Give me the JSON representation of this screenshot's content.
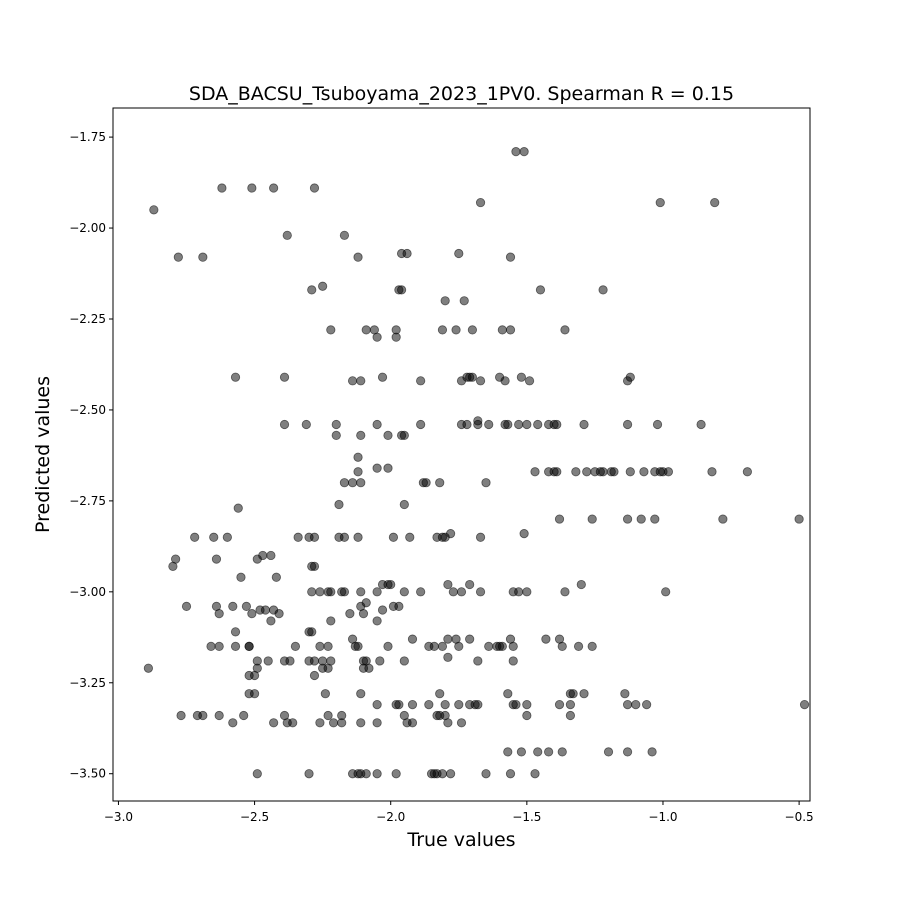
{
  "chart_data": {
    "type": "scatter",
    "title": "SDA_BACSU_Tsuboyama_2023_1PV0. Spearman R = 0.15",
    "xlabel": "True values",
    "ylabel": "Predicted values",
    "xlim": [
      -3.02,
      -0.46
    ],
    "ylim": [
      -3.575,
      -1.67
    ],
    "xticks": [
      -3.0,
      -2.5,
      -2.0,
      -1.5,
      -1.0,
      -0.5
    ],
    "xtick_labels": [
      "−3.0",
      "−2.5",
      "−2.0",
      "−1.5",
      "−1.0",
      "−0.5"
    ],
    "yticks": [
      -3.5,
      -3.25,
      -3.0,
      -2.75,
      -2.5,
      -2.25,
      -2.0,
      -1.75
    ],
    "ytick_labels": [
      "−3.50",
      "−3.25",
      "−3.00",
      "−2.75",
      "−2.50",
      "−2.25",
      "−2.00",
      "−1.75"
    ],
    "grid": false,
    "marker_color": "#000000",
    "marker_opacity": 0.5,
    "points": [
      [
        -1.54,
        -1.79
      ],
      [
        -1.51,
        -1.79
      ],
      [
        -2.87,
        -1.95
      ],
      [
        -2.62,
        -1.89
      ],
      [
        -2.51,
        -1.89
      ],
      [
        -2.43,
        -1.89
      ],
      [
        -2.28,
        -1.89
      ],
      [
        -1.67,
        -1.93
      ],
      [
        -1.01,
        -1.93
      ],
      [
        -0.81,
        -1.93
      ],
      [
        -2.78,
        -2.08
      ],
      [
        -2.69,
        -2.08
      ],
      [
        -2.38,
        -2.02
      ],
      [
        -2.17,
        -2.02
      ],
      [
        -2.12,
        -2.08
      ],
      [
        -1.96,
        -2.07
      ],
      [
        -1.94,
        -2.07
      ],
      [
        -1.75,
        -2.07
      ],
      [
        -1.56,
        -2.08
      ],
      [
        -2.29,
        -2.17
      ],
      [
        -2.25,
        -2.16
      ],
      [
        -1.97,
        -2.17
      ],
      [
        -1.96,
        -2.17
      ],
      [
        -1.8,
        -2.2
      ],
      [
        -1.73,
        -2.2
      ],
      [
        -1.45,
        -2.17
      ],
      [
        -1.22,
        -2.17
      ],
      [
        -2.22,
        -2.28
      ],
      [
        -2.09,
        -2.28
      ],
      [
        -2.06,
        -2.28
      ],
      [
        -2.05,
        -2.3
      ],
      [
        -1.98,
        -2.28
      ],
      [
        -1.98,
        -2.3
      ],
      [
        -1.81,
        -2.28
      ],
      [
        -1.76,
        -2.28
      ],
      [
        -1.7,
        -2.28
      ],
      [
        -1.59,
        -2.28
      ],
      [
        -1.56,
        -2.28
      ],
      [
        -1.36,
        -2.28
      ],
      [
        -2.57,
        -2.41
      ],
      [
        -2.39,
        -2.41
      ],
      [
        -2.14,
        -2.42
      ],
      [
        -2.11,
        -2.42
      ],
      [
        -2.03,
        -2.41
      ],
      [
        -1.89,
        -2.42
      ],
      [
        -1.74,
        -2.42
      ],
      [
        -1.72,
        -2.41
      ],
      [
        -1.71,
        -2.41
      ],
      [
        -1.7,
        -2.41
      ],
      [
        -1.67,
        -2.42
      ],
      [
        -1.6,
        -2.41
      ],
      [
        -1.58,
        -2.42
      ],
      [
        -1.52,
        -2.41
      ],
      [
        -1.49,
        -2.42
      ],
      [
        -1.13,
        -2.42
      ],
      [
        -1.12,
        -2.41
      ],
      [
        -2.39,
        -2.54
      ],
      [
        -2.31,
        -2.54
      ],
      [
        -2.2,
        -2.54
      ],
      [
        -2.2,
        -2.57
      ],
      [
        -2.11,
        -2.57
      ],
      [
        -2.05,
        -2.54
      ],
      [
        -2.01,
        -2.57
      ],
      [
        -1.96,
        -2.57
      ],
      [
        -1.95,
        -2.57
      ],
      [
        -1.89,
        -2.54
      ],
      [
        -1.74,
        -2.54
      ],
      [
        -1.72,
        -2.54
      ],
      [
        -1.68,
        -2.54
      ],
      [
        -1.68,
        -2.53
      ],
      [
        -1.64,
        -2.54
      ],
      [
        -1.58,
        -2.54
      ],
      [
        -1.57,
        -2.54
      ],
      [
        -1.53,
        -2.54
      ],
      [
        -1.5,
        -2.54
      ],
      [
        -1.46,
        -2.54
      ],
      [
        -1.42,
        -2.54
      ],
      [
        -1.4,
        -2.54
      ],
      [
        -1.39,
        -2.54
      ],
      [
        -1.29,
        -2.54
      ],
      [
        -1.13,
        -2.54
      ],
      [
        -1.02,
        -2.54
      ],
      [
        -0.86,
        -2.54
      ],
      [
        -2.12,
        -2.63
      ],
      [
        -2.12,
        -2.67
      ],
      [
        -2.05,
        -2.66
      ],
      [
        -2.01,
        -2.66
      ],
      [
        -1.65,
        -2.7
      ],
      [
        -1.47,
        -2.67
      ],
      [
        -1.42,
        -2.67
      ],
      [
        -1.4,
        -2.67
      ],
      [
        -1.39,
        -2.67
      ],
      [
        -1.32,
        -2.67
      ],
      [
        -1.28,
        -2.67
      ],
      [
        -1.25,
        -2.67
      ],
      [
        -1.23,
        -2.67
      ],
      [
        -1.22,
        -2.67
      ],
      [
        -1.19,
        -2.67
      ],
      [
        -1.18,
        -2.67
      ],
      [
        -1.12,
        -2.67
      ],
      [
        -1.07,
        -2.67
      ],
      [
        -1.03,
        -2.67
      ],
      [
        -1.01,
        -2.67
      ],
      [
        -1.0,
        -2.67
      ],
      [
        -0.98,
        -2.67
      ],
      [
        -0.82,
        -2.67
      ],
      [
        -0.69,
        -2.67
      ],
      [
        -2.56,
        -2.77
      ],
      [
        -2.17,
        -2.7
      ],
      [
        -2.14,
        -2.7
      ],
      [
        -2.11,
        -2.7
      ],
      [
        -2.19,
        -2.76
      ],
      [
        -1.95,
        -2.76
      ],
      [
        -1.88,
        -2.7
      ],
      [
        -1.87,
        -2.7
      ],
      [
        -1.82,
        -2.7
      ],
      [
        -1.38,
        -2.8
      ],
      [
        -1.26,
        -2.8
      ],
      [
        -1.13,
        -2.8
      ],
      [
        -1.08,
        -2.8
      ],
      [
        -1.03,
        -2.8
      ],
      [
        -0.78,
        -2.8
      ],
      [
        -0.5,
        -2.8
      ],
      [
        -2.72,
        -2.85
      ],
      [
        -2.65,
        -2.85
      ],
      [
        -2.6,
        -2.85
      ],
      [
        -2.34,
        -2.85
      ],
      [
        -2.3,
        -2.85
      ],
      [
        -2.28,
        -2.85
      ],
      [
        -2.19,
        -2.85
      ],
      [
        -2.17,
        -2.85
      ],
      [
        -2.12,
        -2.85
      ],
      [
        -1.99,
        -2.85
      ],
      [
        -1.93,
        -2.85
      ],
      [
        -1.83,
        -2.85
      ],
      [
        -1.81,
        -2.85
      ],
      [
        -1.8,
        -2.85
      ],
      [
        -1.78,
        -2.84
      ],
      [
        -1.67,
        -2.85
      ],
      [
        -1.51,
        -2.84
      ],
      [
        -2.8,
        -2.93
      ],
      [
        -2.79,
        -2.91
      ],
      [
        -2.64,
        -2.91
      ],
      [
        -2.49,
        -2.91
      ],
      [
        -2.47,
        -2.9
      ],
      [
        -2.44,
        -2.9
      ],
      [
        -2.29,
        -2.93
      ],
      [
        -2.28,
        -2.93
      ],
      [
        -2.55,
        -2.96
      ],
      [
        -2.42,
        -2.96
      ],
      [
        -2.29,
        -3.0
      ],
      [
        -2.26,
        -3.0
      ],
      [
        -2.23,
        -3.0
      ],
      [
        -2.22,
        -3.0
      ],
      [
        -2.18,
        -3.0
      ],
      [
        -2.17,
        -3.0
      ],
      [
        -2.11,
        -3.0
      ],
      [
        -2.05,
        -3.0
      ],
      [
        -2.03,
        -2.98
      ],
      [
        -2.01,
        -2.98
      ],
      [
        -2.0,
        -2.98
      ],
      [
        -1.95,
        -3.0
      ],
      [
        -1.89,
        -3.0
      ],
      [
        -1.79,
        -2.98
      ],
      [
        -1.77,
        -3.0
      ],
      [
        -1.74,
        -3.0
      ],
      [
        -1.71,
        -2.98
      ],
      [
        -1.67,
        -3.0
      ],
      [
        -1.55,
        -3.0
      ],
      [
        -1.53,
        -3.0
      ],
      [
        -1.5,
        -3.0
      ],
      [
        -1.36,
        -3.0
      ],
      [
        -1.3,
        -2.98
      ],
      [
        -0.99,
        -3.0
      ],
      [
        -2.75,
        -3.04
      ],
      [
        -2.64,
        -3.04
      ],
      [
        -2.63,
        -3.06
      ],
      [
        -2.58,
        -3.04
      ],
      [
        -2.53,
        -3.04
      ],
      [
        -2.51,
        -3.06
      ],
      [
        -2.48,
        -3.05
      ],
      [
        -2.46,
        -3.05
      ],
      [
        -2.44,
        -3.08
      ],
      [
        -2.43,
        -3.05
      ],
      [
        -2.41,
        -3.06
      ],
      [
        -2.22,
        -3.08
      ],
      [
        -2.15,
        -3.06
      ],
      [
        -2.11,
        -3.04
      ],
      [
        -2.1,
        -3.06
      ],
      [
        -2.09,
        -3.03
      ],
      [
        -2.05,
        -3.08
      ],
      [
        -2.03,
        -3.05
      ],
      [
        -1.99,
        -3.04
      ],
      [
        -1.97,
        -3.04
      ],
      [
        -2.66,
        -3.15
      ],
      [
        -2.63,
        -3.15
      ],
      [
        -2.57,
        -3.11
      ],
      [
        -2.57,
        -3.15
      ],
      [
        -2.52,
        -3.15
      ],
      [
        -2.52,
        -3.15
      ],
      [
        -2.49,
        -3.19
      ],
      [
        -2.49,
        -3.21
      ],
      [
        -2.45,
        -3.19
      ],
      [
        -2.39,
        -3.19
      ],
      [
        -2.37,
        -3.19
      ],
      [
        -2.35,
        -3.15
      ],
      [
        -2.3,
        -3.11
      ],
      [
        -2.29,
        -3.11
      ],
      [
        -2.3,
        -3.19
      ],
      [
        -2.28,
        -3.19
      ],
      [
        -2.26,
        -3.15
      ],
      [
        -2.25,
        -3.19
      ],
      [
        -2.25,
        -3.21
      ],
      [
        -2.23,
        -3.15
      ],
      [
        -2.22,
        -3.19
      ],
      [
        -2.23,
        -3.21
      ],
      [
        -2.14,
        -3.13
      ],
      [
        -2.13,
        -3.15
      ],
      [
        -2.12,
        -3.15
      ],
      [
        -2.1,
        -3.19
      ],
      [
        -2.1,
        -3.21
      ],
      [
        -2.09,
        -3.19
      ],
      [
        -2.08,
        -3.21
      ],
      [
        -2.04,
        -3.19
      ],
      [
        -2.01,
        -3.15
      ],
      [
        -1.95,
        -3.19
      ],
      [
        -1.92,
        -3.13
      ],
      [
        -1.86,
        -3.15
      ],
      [
        -1.84,
        -3.15
      ],
      [
        -1.81,
        -3.15
      ],
      [
        -1.79,
        -3.13
      ],
      [
        -1.79,
        -3.18
      ],
      [
        -1.76,
        -3.13
      ],
      [
        -1.75,
        -3.15
      ],
      [
        -1.71,
        -3.13
      ],
      [
        -1.68,
        -3.19
      ],
      [
        -1.64,
        -3.15
      ],
      [
        -1.61,
        -3.15
      ],
      [
        -1.6,
        -3.15
      ],
      [
        -1.59,
        -3.15
      ],
      [
        -1.56,
        -3.13
      ],
      [
        -1.55,
        -3.15
      ],
      [
        -1.55,
        -3.19
      ],
      [
        -1.43,
        -3.13
      ],
      [
        -1.38,
        -3.13
      ],
      [
        -1.37,
        -3.15
      ],
      [
        -1.31,
        -3.15
      ],
      [
        -1.26,
        -3.15
      ],
      [
        -2.89,
        -3.21
      ],
      [
        -2.52,
        -3.23
      ],
      [
        -2.5,
        -3.23
      ],
      [
        -2.52,
        -3.28
      ],
      [
        -2.5,
        -3.28
      ],
      [
        -2.28,
        -3.23
      ],
      [
        -2.24,
        -3.28
      ],
      [
        -2.11,
        -3.28
      ],
      [
        -2.05,
        -3.31
      ],
      [
        -1.98,
        -3.31
      ],
      [
        -1.97,
        -3.31
      ],
      [
        -1.92,
        -3.31
      ],
      [
        -1.86,
        -3.31
      ],
      [
        -1.82,
        -3.28
      ],
      [
        -1.8,
        -3.31
      ],
      [
        -1.75,
        -3.31
      ],
      [
        -1.71,
        -3.31
      ],
      [
        -1.69,
        -3.31
      ],
      [
        -1.68,
        -3.31
      ],
      [
        -1.57,
        -3.28
      ],
      [
        -1.55,
        -3.31
      ],
      [
        -1.54,
        -3.31
      ],
      [
        -1.5,
        -3.31
      ],
      [
        -1.38,
        -3.31
      ],
      [
        -1.34,
        -3.28
      ],
      [
        -1.33,
        -3.28
      ],
      [
        -1.34,
        -3.31
      ],
      [
        -1.29,
        -3.28
      ],
      [
        -1.14,
        -3.28
      ],
      [
        -1.13,
        -3.31
      ],
      [
        -1.1,
        -3.31
      ],
      [
        -1.06,
        -3.31
      ],
      [
        -0.48,
        -3.31
      ],
      [
        -2.77,
        -3.34
      ],
      [
        -2.71,
        -3.34
      ],
      [
        -2.69,
        -3.34
      ],
      [
        -2.63,
        -3.34
      ],
      [
        -2.58,
        -3.36
      ],
      [
        -2.54,
        -3.34
      ],
      [
        -2.43,
        -3.36
      ],
      [
        -2.39,
        -3.34
      ],
      [
        -2.38,
        -3.36
      ],
      [
        -2.36,
        -3.36
      ],
      [
        -2.26,
        -3.36
      ],
      [
        -2.23,
        -3.34
      ],
      [
        -2.21,
        -3.36
      ],
      [
        -2.18,
        -3.36
      ],
      [
        -2.18,
        -3.34
      ],
      [
        -2.11,
        -3.36
      ],
      [
        -2.05,
        -3.36
      ],
      [
        -1.95,
        -3.34
      ],
      [
        -1.94,
        -3.36
      ],
      [
        -1.92,
        -3.36
      ],
      [
        -1.83,
        -3.34
      ],
      [
        -1.82,
        -3.34
      ],
      [
        -1.8,
        -3.34
      ],
      [
        -1.79,
        -3.36
      ],
      [
        -1.74,
        -3.36
      ],
      [
        -1.5,
        -3.34
      ],
      [
        -1.34,
        -3.34
      ],
      [
        -1.57,
        -3.44
      ],
      [
        -1.52,
        -3.44
      ],
      [
        -1.46,
        -3.44
      ],
      [
        -1.42,
        -3.44
      ],
      [
        -1.37,
        -3.44
      ],
      [
        -1.2,
        -3.44
      ],
      [
        -1.13,
        -3.44
      ],
      [
        -1.04,
        -3.44
      ],
      [
        -2.49,
        -3.5
      ],
      [
        -2.3,
        -3.5
      ],
      [
        -2.14,
        -3.5
      ],
      [
        -2.12,
        -3.5
      ],
      [
        -2.11,
        -3.5
      ],
      [
        -2.09,
        -3.5
      ],
      [
        -2.05,
        -3.5
      ],
      [
        -1.98,
        -3.5
      ],
      [
        -1.85,
        -3.5
      ],
      [
        -1.84,
        -3.5
      ],
      [
        -1.83,
        -3.5
      ],
      [
        -1.81,
        -3.5
      ],
      [
        -1.78,
        -3.5
      ],
      [
        -1.65,
        -3.5
      ],
      [
        -1.56,
        -3.5
      ],
      [
        -1.47,
        -3.5
      ]
    ]
  }
}
